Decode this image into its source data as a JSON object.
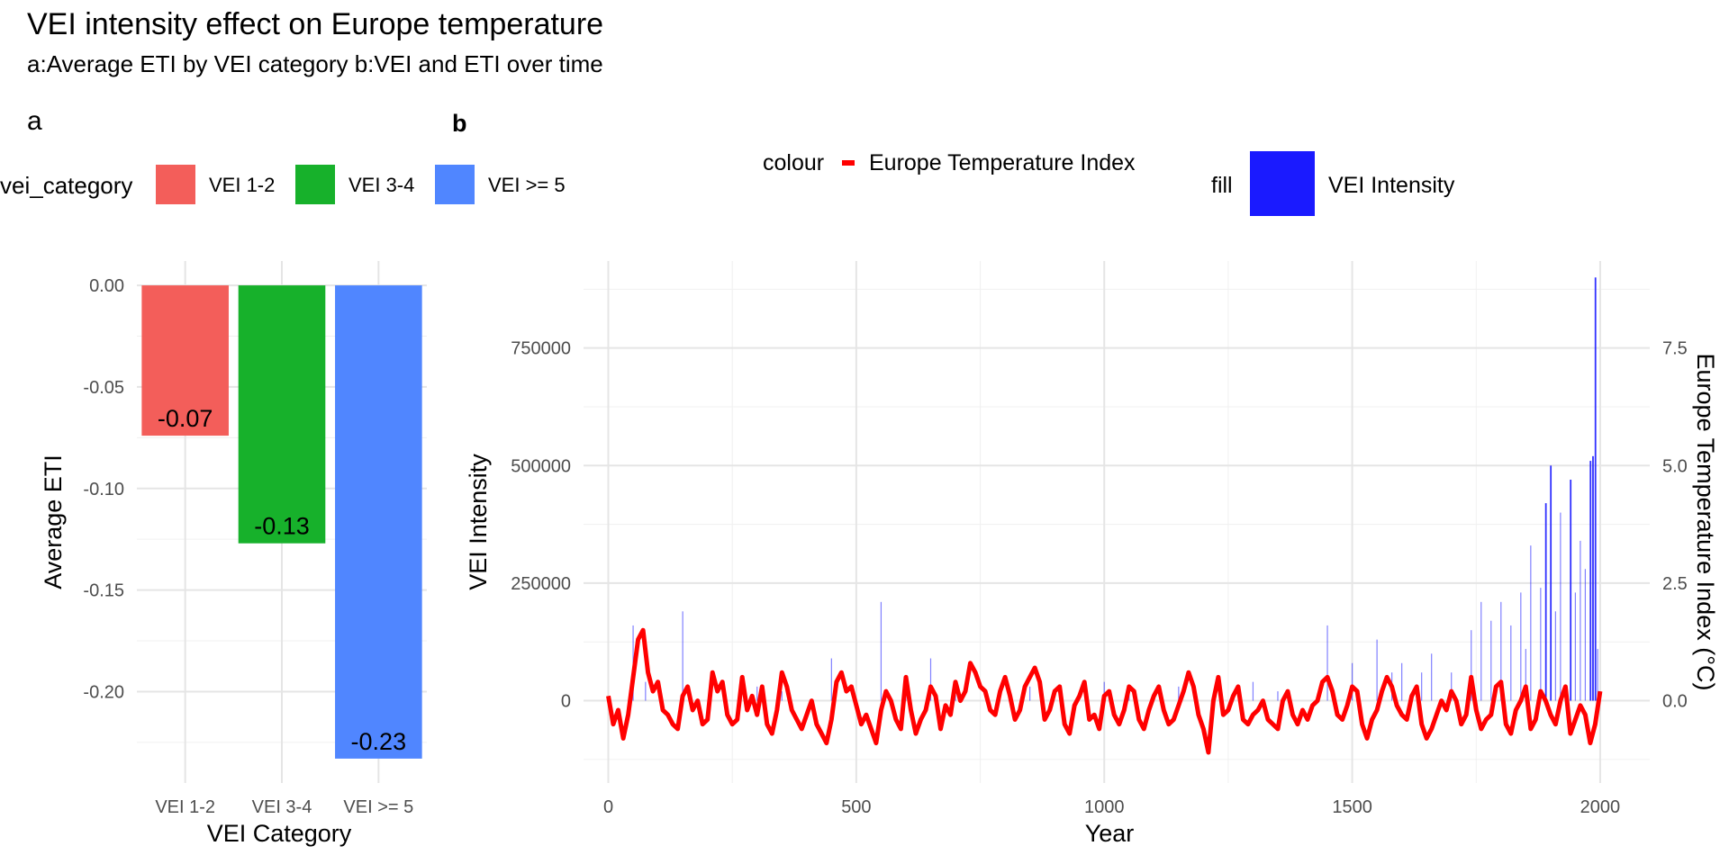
{
  "header": {
    "title": "VEI intensity effect on Europe temperature",
    "subtitle": "a:Average ETI by VEI category b:VEI and ETI over time"
  },
  "colors": {
    "vei12": "#F35E5A",
    "vei34": "#17B12B",
    "vei5": "#5086FF",
    "eti_line": "#FF0000",
    "vei_fill": "#1A1AFF",
    "grid_major": "#E5E5E5",
    "grid_minor": "#F0F0F0"
  },
  "chart_data": [
    {
      "panel": "a",
      "type": "bar",
      "legend": {
        "title": "vei_category",
        "position": "top",
        "entries": [
          "VEI 1-2",
          "VEI 3-4",
          "VEI >= 5"
        ]
      },
      "categories": [
        "VEI 1-2",
        "VEI 3-4",
        "VEI >= 5"
      ],
      "values": [
        -0.074,
        -0.127,
        -0.233
      ],
      "data_labels": [
        "-0.07",
        "-0.13",
        "-0.23"
      ],
      "xlabel": "VEI Category",
      "ylabel": "Average ETI",
      "ylim": [
        -0.245,
        0.012
      ],
      "y_ticks": [
        0.0,
        -0.05,
        -0.1,
        -0.15,
        -0.2
      ],
      "y_tick_labels": [
        "0.00",
        "-0.05",
        "-0.10",
        "-0.15",
        "-0.20"
      ],
      "grid": true
    },
    {
      "panel": "b",
      "type": "bar+line",
      "legend": [
        {
          "title": "colour",
          "entry": "Europe Temperature Index",
          "position": "top"
        },
        {
          "title": "fill",
          "entry": "VEI Intensity",
          "position": "top"
        }
      ],
      "xlabel": "Year",
      "ylabel": "VEI Intensity",
      "ylabel_right": "Europe Temperature Index (°C)",
      "xlim": [
        -50,
        2100
      ],
      "x_ticks": [
        0,
        500,
        1000,
        1500,
        2000
      ],
      "ylim": [
        -175000,
        935000
      ],
      "y_ticks": [
        0,
        250000,
        500000,
        750000
      ],
      "y_tick_labels": [
        "0",
        "250000",
        "500000",
        "750000"
      ],
      "y2_ticks": [
        0.0,
        2.5,
        5.0,
        7.5
      ],
      "y2_tick_labels": [
        "0.0",
        "2.5",
        "5.0",
        "7.5"
      ],
      "y2_scale_note": "secondary axis = VEI / 100000",
      "grid": true,
      "series": [
        {
          "name": "VEI Intensity",
          "kind": "bar",
          "points": [
            [
              50,
              160000
            ],
            [
              75,
              40000
            ],
            [
              150,
              190000
            ],
            [
              300,
              30000
            ],
            [
              350,
              20000
            ],
            [
              450,
              90000
            ],
            [
              550,
              210000
            ],
            [
              600,
              40000
            ],
            [
              650,
              90000
            ],
            [
              700,
              30000
            ],
            [
              850,
              30000
            ],
            [
              1000,
              40000
            ],
            [
              1050,
              20000
            ],
            [
              1150,
              30000
            ],
            [
              1300,
              40000
            ],
            [
              1350,
              20000
            ],
            [
              1450,
              160000
            ],
            [
              1500,
              80000
            ],
            [
              1550,
              130000
            ],
            [
              1580,
              60000
            ],
            [
              1600,
              80000
            ],
            [
              1640,
              60000
            ],
            [
              1660,
              100000
            ],
            [
              1700,
              60000
            ],
            [
              1740,
              150000
            ],
            [
              1760,
              210000
            ],
            [
              1780,
              170000
            ],
            [
              1800,
              210000
            ],
            [
              1820,
              160000
            ],
            [
              1840,
              230000
            ],
            [
              1850,
              110000
            ],
            [
              1860,
              330000
            ],
            [
              1880,
              240000
            ],
            [
              1890,
              420000
            ],
            [
              1900,
              500000
            ],
            [
              1910,
              190000
            ],
            [
              1920,
              400000
            ],
            [
              1940,
              470000
            ],
            [
              1950,
              230000
            ],
            [
              1960,
              340000
            ],
            [
              1970,
              280000
            ],
            [
              1980,
              510000
            ],
            [
              1985,
              520000
            ],
            [
              1990,
              900000
            ],
            [
              1995,
              110000
            ]
          ]
        },
        {
          "name": "Europe Temperature Index",
          "kind": "line",
          "x_start": 0,
          "x_step": 10,
          "y": [
            0.1,
            -0.5,
            -0.2,
            -0.8,
            -0.3,
            0.5,
            1.3,
            1.5,
            0.6,
            0.2,
            0.4,
            -0.2,
            -0.3,
            -0.5,
            -0.6,
            0.1,
            0.3,
            -0.2,
            0.0,
            -0.5,
            -0.4,
            0.6,
            0.2,
            0.4,
            -0.3,
            -0.5,
            -0.4,
            0.5,
            -0.2,
            0.1,
            -0.3,
            0.3,
            -0.5,
            -0.7,
            -0.2,
            0.6,
            0.3,
            -0.2,
            -0.4,
            -0.6,
            -0.3,
            0.0,
            -0.5,
            -0.7,
            -0.9,
            -0.4,
            0.4,
            0.6,
            0.2,
            0.3,
            -0.1,
            -0.5,
            -0.3,
            -0.6,
            -0.9,
            -0.2,
            0.2,
            0.0,
            -0.4,
            -0.6,
            0.5,
            -0.2,
            -0.7,
            -0.4,
            -0.2,
            0.3,
            0.1,
            -0.6,
            -0.1,
            -0.3,
            0.4,
            0.0,
            0.2,
            0.8,
            0.6,
            0.3,
            0.2,
            -0.2,
            -0.3,
            0.2,
            0.5,
            0.1,
            -0.4,
            -0.2,
            0.3,
            0.5,
            0.7,
            0.4,
            -0.4,
            -0.2,
            0.2,
            0.3,
            -0.5,
            -0.7,
            -0.1,
            0.1,
            0.4,
            -0.4,
            -0.3,
            -0.6,
            0.1,
            0.2,
            -0.3,
            -0.5,
            -0.2,
            0.3,
            0.2,
            -0.4,
            -0.6,
            -0.2,
            0.1,
            0.3,
            -0.2,
            -0.5,
            -0.4,
            -0.1,
            0.2,
            0.6,
            0.3,
            -0.3,
            -0.6,
            -1.1,
            0.0,
            0.5,
            -0.3,
            -0.2,
            0.1,
            0.3,
            -0.4,
            -0.5,
            -0.3,
            -0.2,
            0.0,
            -0.4,
            -0.5,
            -0.6,
            0.0,
            0.2,
            -0.3,
            -0.5,
            -0.2,
            -0.4,
            -0.1,
            0.0,
            0.4,
            0.5,
            0.2,
            -0.3,
            -0.4,
            -0.1,
            0.3,
            0.2,
            -0.5,
            -0.8,
            -0.4,
            -0.2,
            0.2,
            0.5,
            0.3,
            -0.1,
            -0.3,
            -0.4,
            0.1,
            0.3,
            -0.5,
            -0.8,
            -0.6,
            -0.3,
            0.0,
            -0.2,
            0.2,
            0.0,
            -0.5,
            -0.3,
            0.5,
            -0.2,
            -0.6,
            -0.4,
            -0.3,
            0.3,
            0.4,
            -0.5,
            -0.7,
            -0.2,
            0.0,
            0.3,
            -0.6,
            -0.4,
            0.2,
            0.0,
            -0.3,
            -0.5,
            0.0,
            0.3,
            -0.7,
            -0.4,
            -0.1,
            -0.3,
            -0.9,
            -0.5,
            0.2
          ]
        }
      ]
    }
  ]
}
